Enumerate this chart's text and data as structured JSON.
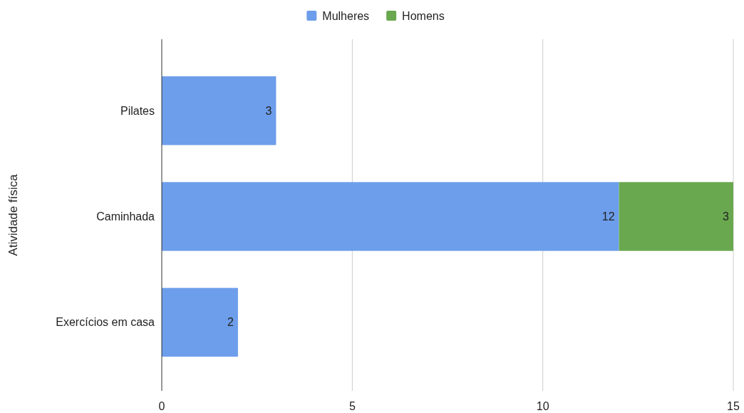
{
  "chart_data": {
    "type": "bar",
    "orientation": "horizontal",
    "stacked": true,
    "ylabel": "Atividade física",
    "categories": [
      "Pilates",
      "Caminhada",
      "Exercícios em casa"
    ],
    "series": [
      {
        "name": "Mulheres",
        "color": "#6d9eeb",
        "values": [
          3,
          12,
          2
        ]
      },
      {
        "name": "Homens",
        "color": "#6aa84f",
        "values": [
          null,
          3,
          null
        ]
      }
    ],
    "xlim": [
      0,
      15
    ],
    "xticks": [
      0,
      5,
      10,
      15
    ],
    "grid": "x",
    "legend": "top",
    "data_labels": true
  }
}
